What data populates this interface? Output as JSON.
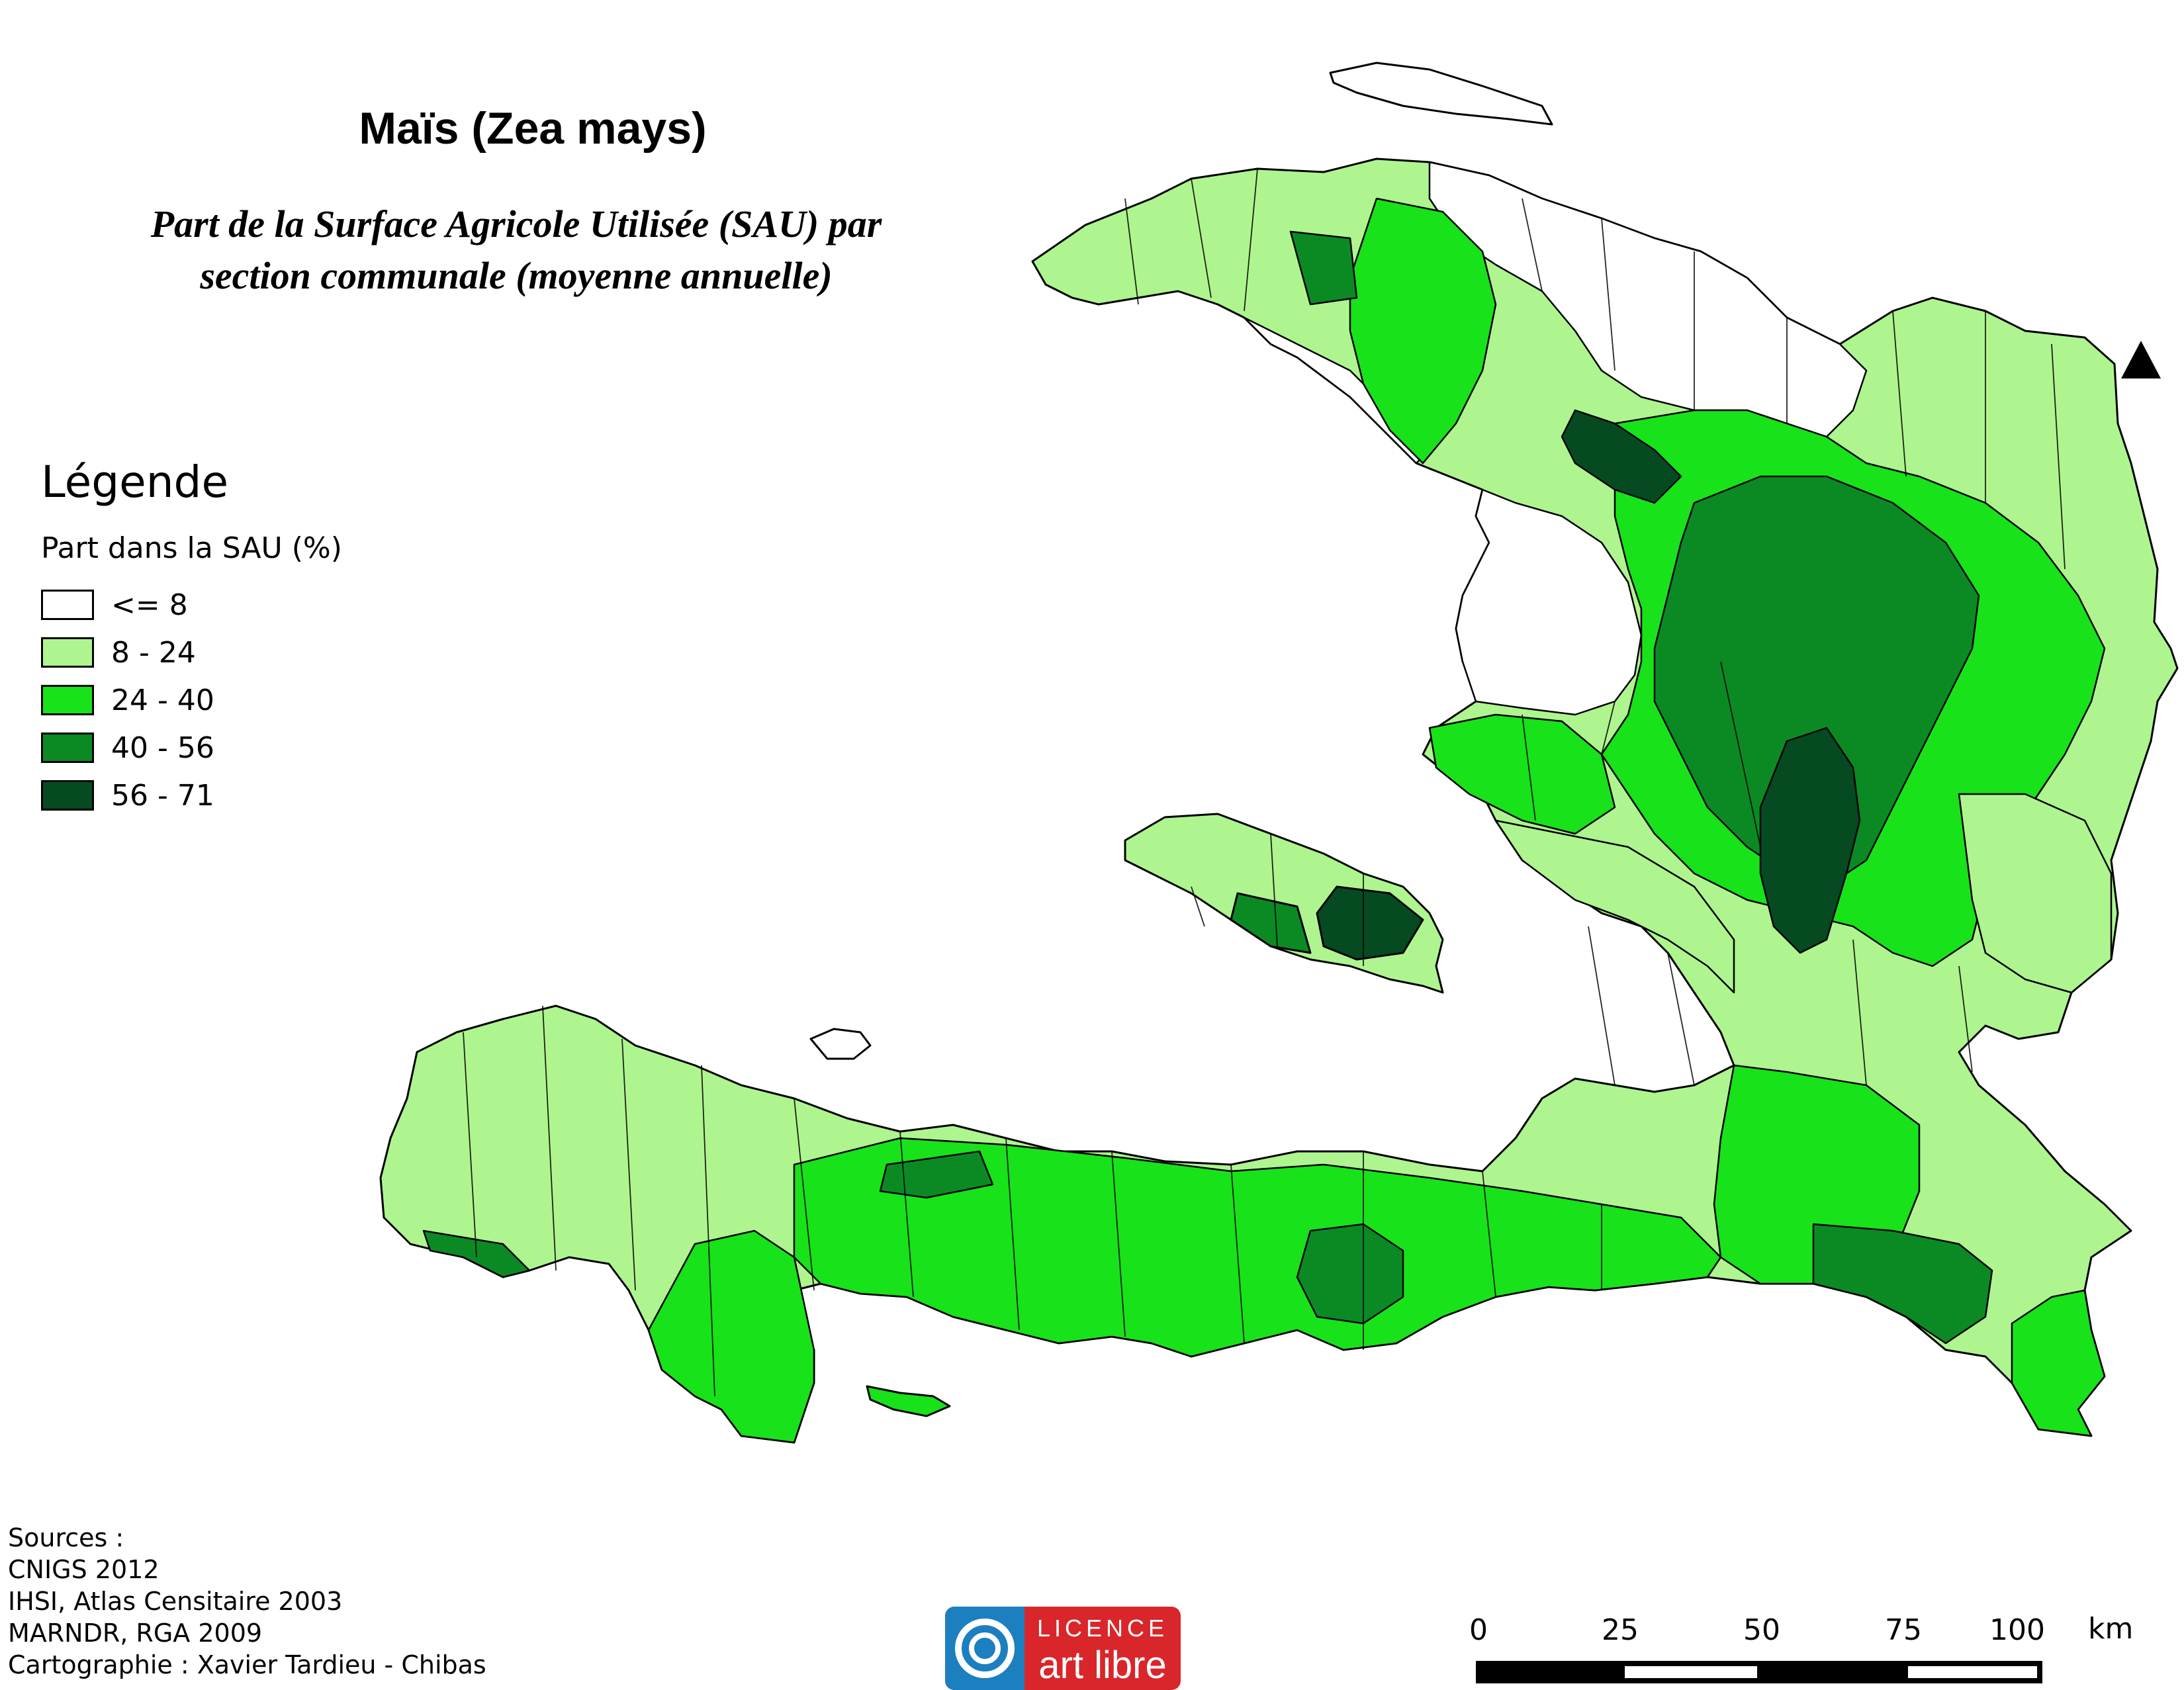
{
  "title": "Maïs (Zea mays)",
  "subtitle_line1": "Part de la Surface Agricole Utilisée (SAU) par",
  "subtitle_line2": "section communale (moyenne annuelle)",
  "legend": {
    "title": "Légende",
    "subtitle": "Part dans la SAU (%)",
    "classes": [
      {
        "label": "<= 8",
        "color": "#ffffff"
      },
      {
        "label": "8 - 24",
        "color": "#aef58f"
      },
      {
        "label": "24 - 40",
        "color": "#18e21a"
      },
      {
        "label": "40 - 56",
        "color": "#0b8a24"
      },
      {
        "label": "56 - 71",
        "color": "#064a22"
      }
    ]
  },
  "sources": [
    "Sources :",
    "CNIGS 2012",
    "IHSI, Atlas Censitaire 2003",
    "MARNDR, RGA 2009",
    "Cartographie : Xavier Tardieu - Chibas"
  ],
  "licence": {
    "line1": "LICENCE",
    "line2": "art libre"
  },
  "scale": {
    "ticks": [
      "0",
      "25",
      "50",
      "75",
      "100"
    ],
    "unit": "km"
  },
  "north_icon": "north-arrow-icon"
}
